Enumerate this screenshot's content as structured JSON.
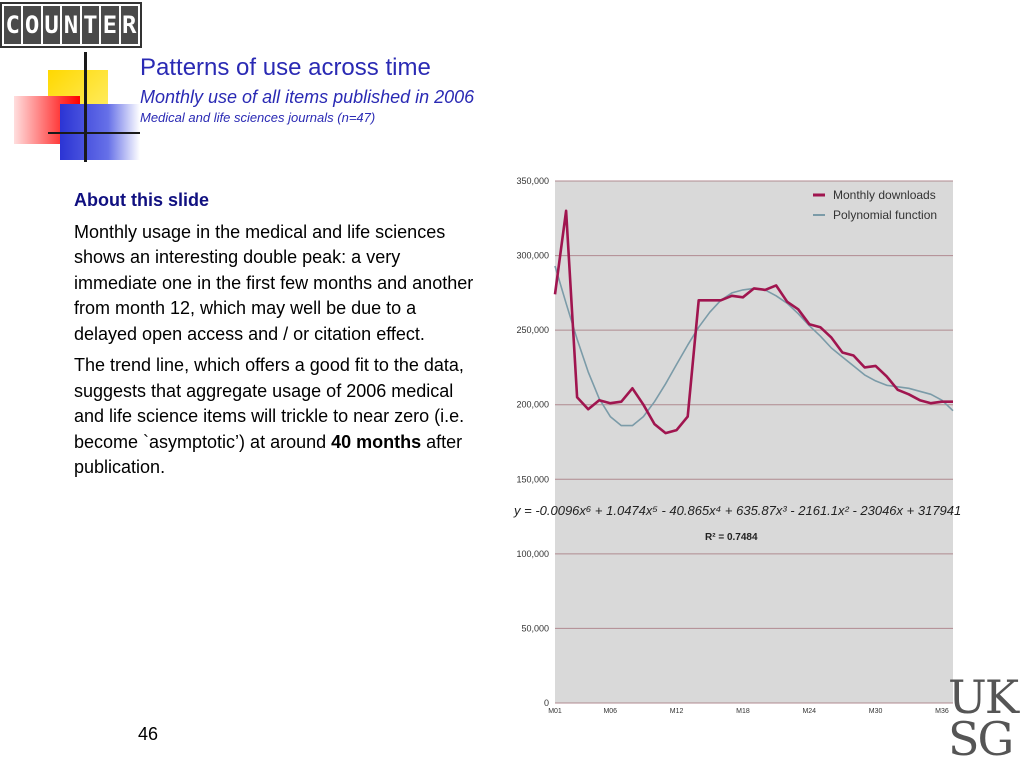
{
  "logo": {
    "letters": [
      "C",
      "O",
      "U",
      "N",
      "T",
      "E",
      "R"
    ]
  },
  "header": {
    "title": "Patterns of use across time",
    "subtitle": "Monthly use of all items published in 2006",
    "subsubtitle": "Medical and life sciences journals (n=47)"
  },
  "body": {
    "heading": "About this slide",
    "para1": "Monthly usage in the medical and life sciences shows an interesting double peak: a very immediate one in the first few months and another from month 12, which may well be due to a delayed open access and / or citation effect.",
    "para2_part1": "The trend line, which offers a good fit to the data, suggests that aggregate usage of 2006 medical and life science items will trickle to near zero (i.e. become `asymptotic’) at around ",
    "para2_bold": "40 months",
    "para2_part2": " after publication."
  },
  "page_number": "46",
  "uksg": {
    "line1": "UK",
    "line2": "SG"
  },
  "colors": {
    "title": "#2a2ab4",
    "downloads": "#a0154f",
    "polynomial": "#7b9ba8",
    "plot_bg": "#d9d9d9"
  },
  "chart_data": {
    "type": "line",
    "ylim": [
      0,
      350000
    ],
    "yticks": [
      0,
      50000,
      100000,
      150000,
      200000,
      250000,
      300000,
      350000
    ],
    "ytick_labels": [
      "0",
      "50,000",
      "100,000",
      "150,000",
      "200,000",
      "250,000",
      "300,000",
      "350,000"
    ],
    "xlim": [
      1,
      37
    ],
    "xticks": [
      1,
      6,
      12,
      18,
      24,
      30,
      36
    ],
    "xtick_labels": [
      "M01",
      "M06",
      "M12",
      "M18",
      "M24",
      "M30",
      "M36"
    ],
    "grid": true,
    "legend_position": "top-right",
    "series": [
      {
        "name": "Monthly downloads",
        "x": [
          1,
          2,
          3,
          4,
          5,
          6,
          7,
          8,
          9,
          10,
          11,
          12,
          13,
          14,
          15,
          16,
          17,
          18,
          19,
          20,
          21,
          22,
          23,
          24,
          25,
          26,
          27,
          28,
          29,
          30,
          31,
          32,
          33,
          34,
          35,
          36,
          37
        ],
        "values": [
          274000,
          330000,
          205000,
          197000,
          203000,
          201000,
          202000,
          211000,
          200000,
          187000,
          181000,
          183000,
          192000,
          270000,
          270000,
          270000,
          273000,
          272000,
          278000,
          277000,
          280000,
          269000,
          264000,
          254000,
          252000,
          245000,
          235000,
          233000,
          225000,
          226000,
          219000,
          210000,
          207000,
          203000,
          201000,
          202000,
          202000
        ]
      },
      {
        "name": "Polynomial function",
        "equation": "y = -0.0096x⁶ + 1.0474x⁵ - 40.865x⁴ + 635.87x³ - 2161.1x² - 23046x + 317941",
        "r_squared": "R² = 0.7484",
        "x": [
          1,
          2,
          3,
          4,
          5,
          6,
          7,
          8,
          9,
          10,
          11,
          12,
          13,
          14,
          15,
          16,
          17,
          18,
          19,
          20,
          21,
          22,
          23,
          24,
          25,
          26,
          27,
          28,
          29,
          30,
          31,
          32,
          33,
          34,
          35,
          36,
          37
        ],
        "values": [
          293000,
          268000,
          244000,
          222000,
          204000,
          192000,
          186000,
          186000,
          192000,
          202000,
          214000,
          227000,
          240000,
          252000,
          262000,
          270000,
          275000,
          277000,
          278000,
          277000,
          273000,
          268000,
          261000,
          253000,
          246000,
          238000,
          232000,
          226000,
          220000,
          216000,
          213000,
          212000,
          211000,
          209000,
          207000,
          203000,
          196000
        ]
      }
    ]
  }
}
